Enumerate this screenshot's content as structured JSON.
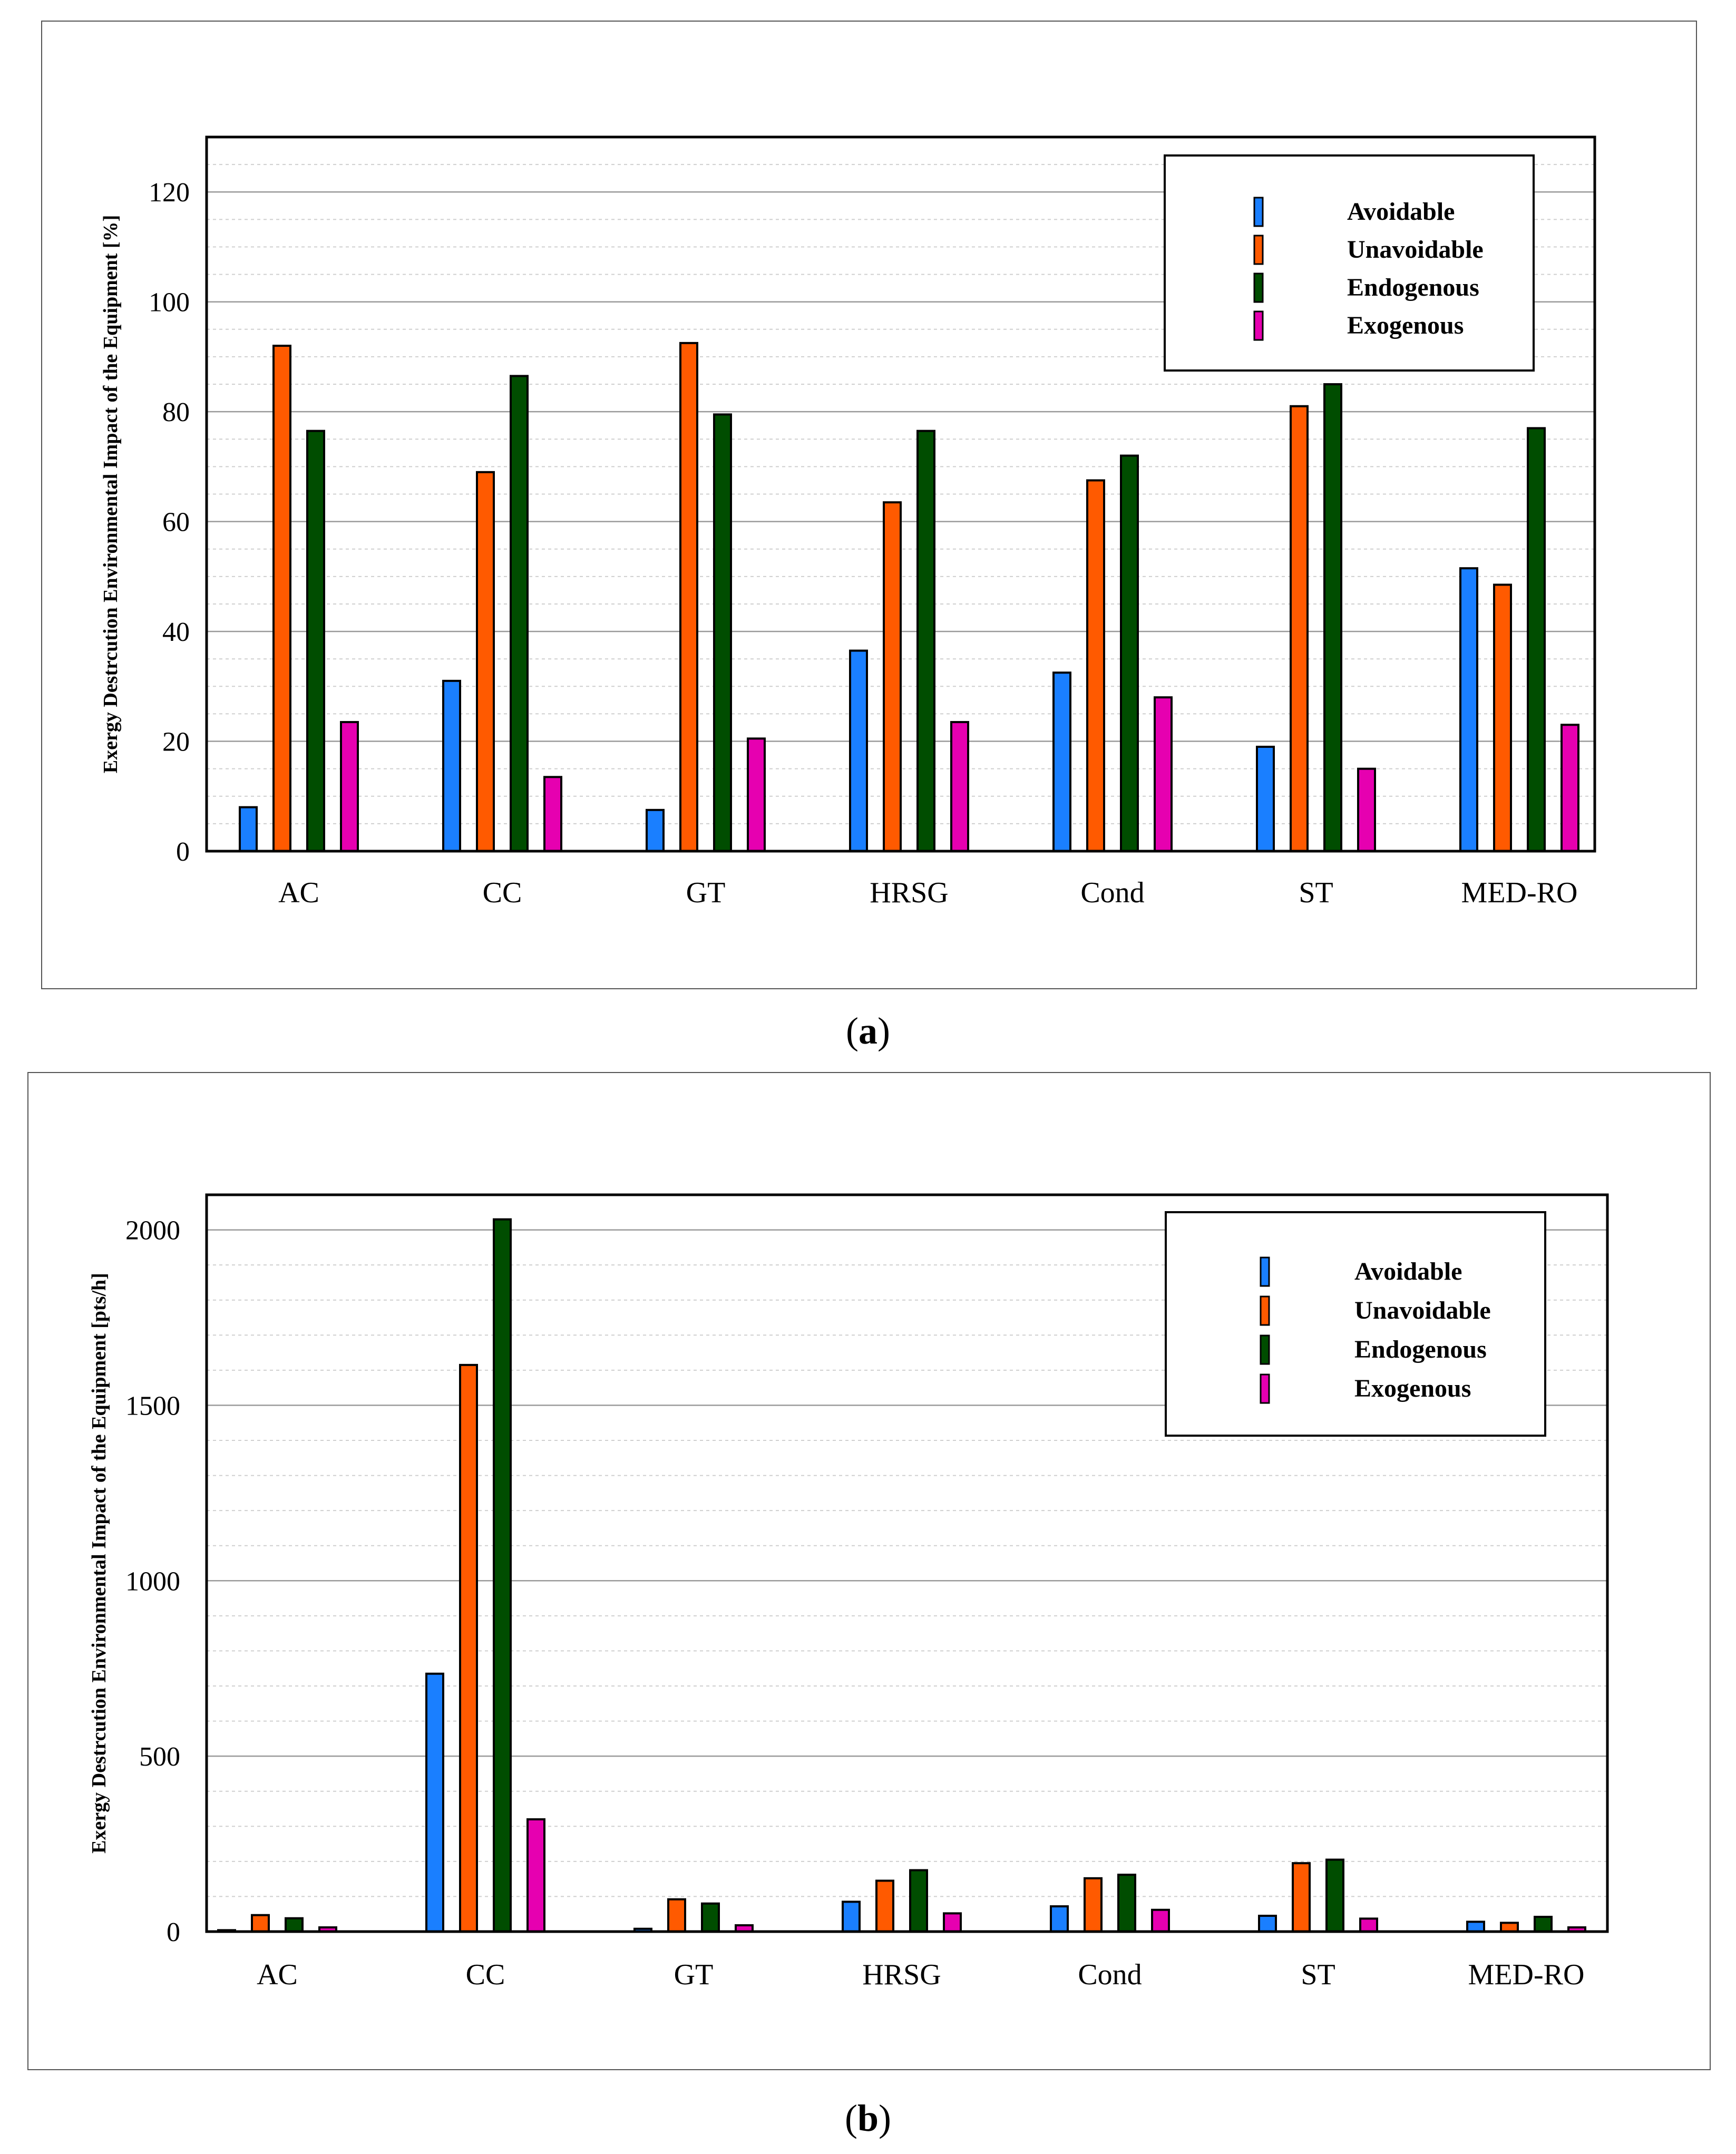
{
  "colors": {
    "avoidable": "#1a7fff",
    "unavoidable": "#ff5a00",
    "endogenous": "#004d00",
    "exogenous": "#e600b0",
    "grid_major": "#9a9a9a",
    "grid_minor": "#cfcfcf"
  },
  "captions": {
    "a_open": "(",
    "a_letter": "a",
    "a_close": ")",
    "b_open": "(",
    "b_letter": "b",
    "b_close": ")"
  },
  "chart_data": [
    {
      "id": "a",
      "type": "bar",
      "title": "",
      "xlabel": "",
      "ylabel": "Exergy Destrcution Environmental Impact of the Equipment [%]",
      "ylim": [
        0,
        130
      ],
      "yticks": [
        0,
        20,
        40,
        60,
        80,
        100,
        120
      ],
      "ytick_labels": [
        "0",
        "20",
        "40",
        "60",
        "80",
        "100",
        "120"
      ],
      "minor_step": 5,
      "grid": true,
      "legend_position": "top-right",
      "categories": [
        "AC",
        "CC",
        "GT",
        "HRSG",
        "Cond",
        "ST",
        "MED-RO"
      ],
      "series": [
        {
          "name": "Avoidable",
          "color_key": "avoidable",
          "values": [
            8,
            31,
            7.5,
            36.5,
            32.5,
            19,
            51.5
          ]
        },
        {
          "name": "Unavoidable",
          "color_key": "unavoidable",
          "values": [
            92,
            69,
            92.5,
            63.5,
            67.5,
            81,
            48.5
          ]
        },
        {
          "name": "Endogenous",
          "color_key": "endogenous",
          "values": [
            76.5,
            86.5,
            79.5,
            76.5,
            72,
            85,
            77
          ]
        },
        {
          "name": "Exogenous",
          "color_key": "exogenous",
          "values": [
            23.5,
            13.5,
            20.5,
            23.5,
            28,
            15,
            23
          ]
        }
      ]
    },
    {
      "id": "b",
      "type": "bar",
      "title": "",
      "xlabel": "",
      "ylabel": "Exergy Destrcution Environmental Impact of the Equipment [pts/h]",
      "ylim": [
        0,
        2100
      ],
      "yticks": [
        0,
        500,
        1000,
        1500,
        2000
      ],
      "ytick_labels": [
        "0",
        "500",
        "1000",
        "1500",
        "2000"
      ],
      "minor_step": 100,
      "grid": true,
      "legend_position": "top-right",
      "categories": [
        "AC",
        "CC",
        "GT",
        "HRSG",
        "Cond",
        "ST",
        "MED-RO"
      ],
      "series": [
        {
          "name": "Avoidable",
          "color_key": "avoidable",
          "values": [
            4,
            735,
            8,
            85,
            72,
            45,
            28
          ]
        },
        {
          "name": "Unavoidable",
          "color_key": "unavoidable",
          "values": [
            47,
            1615,
            92,
            145,
            152,
            195,
            25
          ]
        },
        {
          "name": "Endogenous",
          "color_key": "endogenous",
          "values": [
            38,
            2030,
            80,
            175,
            162,
            205,
            42
          ]
        },
        {
          "name": "Exogenous",
          "color_key": "exogenous",
          "values": [
            12,
            320,
            18,
            52,
            62,
            37,
            12
          ]
        }
      ]
    }
  ]
}
